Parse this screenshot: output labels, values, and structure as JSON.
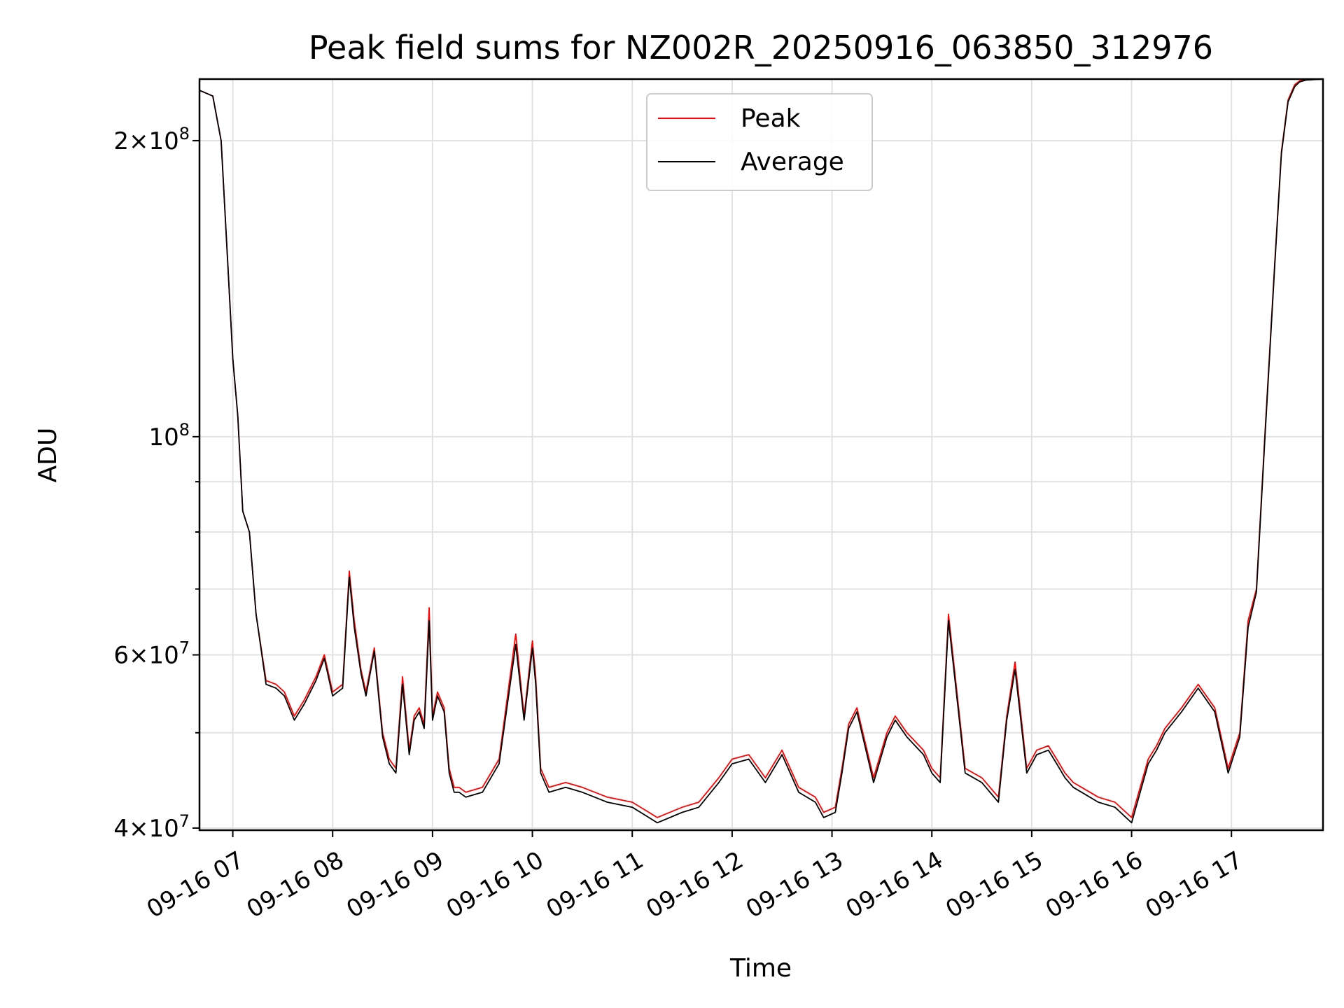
{
  "chart_data": {
    "type": "line",
    "title": "Peak field sums for NZ002R_20250916_063850_312976",
    "xlabel": "Time",
    "ylabel": "ADU",
    "yscale": "log",
    "ylim": [
      39800000,
      231000000
    ],
    "xlim": [
      "2025-09-16 06:40",
      "2025-09-16 17:55"
    ],
    "grid": true,
    "legend_position": "top-center",
    "x_ticks": [
      "09-16 07",
      "09-16 08",
      "09-16 09",
      "09-16 10",
      "09-16 11",
      "09-16 12",
      "09-16 13",
      "09-16 14",
      "09-16 15",
      "09-16 16",
      "09-16 17"
    ],
    "y_ticks": [
      {
        "base": "4",
        "exp": "7",
        "times": true
      },
      {
        "base": "6",
        "exp": "7",
        "times": true
      },
      {
        "base": "10",
        "exp": "8",
        "times": false
      },
      {
        "base": "2",
        "exp": "8",
        "times": true
      }
    ],
    "y_tick_values": [
      40000000,
      60000000,
      100000000,
      200000000
    ],
    "y_minor_values": [
      50000000,
      70000000,
      80000000,
      90000000
    ],
    "series": [
      {
        "name": "Peak",
        "color": "#ff0000"
      },
      {
        "name": "Average",
        "color": "#000000"
      }
    ],
    "x": [
      "06:40",
      "06:48",
      "06:53",
      "06:57",
      "07:00",
      "07:03",
      "07:06",
      "07:10",
      "07:14",
      "07:20",
      "07:26",
      "07:31",
      "07:37",
      "07:43",
      "07:50",
      "07:55",
      "08:00",
      "08:06",
      "08:10",
      "08:13",
      "08:17",
      "08:20",
      "08:25",
      "08:30",
      "08:34",
      "08:38",
      "08:42",
      "08:46",
      "08:49",
      "08:52",
      "08:55",
      "08:58",
      "09:00",
      "09:03",
      "09:07",
      "09:10",
      "09:13",
      "09:16",
      "09:20",
      "09:30",
      "09:40",
      "09:50",
      "09:55",
      "10:00",
      "10:02",
      "10:05",
      "10:10",
      "10:20",
      "10:30",
      "10:45",
      "11:00",
      "11:10",
      "11:15",
      "11:30",
      "11:40",
      "11:52",
      "12:00",
      "12:10",
      "12:20",
      "12:30",
      "12:40",
      "12:50",
      "12:55",
      "13:02",
      "13:06",
      "13:10",
      "13:15",
      "13:25",
      "13:33",
      "13:38",
      "13:45",
      "13:55",
      "14:00",
      "14:05",
      "14:10",
      "14:20",
      "14:30",
      "14:40",
      "14:45",
      "14:50",
      "14:57",
      "15:03",
      "15:10",
      "15:15",
      "15:20",
      "15:25",
      "15:30",
      "15:40",
      "15:50",
      "16:00",
      "16:10",
      "16:15",
      "16:20",
      "16:30",
      "16:40",
      "16:50",
      "16:58",
      "17:05",
      "17:10",
      "17:15",
      "17:20",
      "17:26",
      "17:30",
      "17:34",
      "17:38",
      "17:41",
      "17:45",
      "17:55"
    ],
    "peak": [
      225000000,
      222000000,
      200000000,
      150000000,
      120000000,
      105000000,
      84000000,
      80000000,
      66000000,
      56500000,
      56000000,
      55000000,
      52000000,
      54000000,
      57000000,
      60000000,
      55000000,
      56000000,
      73000000,
      65000000,
      58000000,
      55000000,
      61000000,
      50000000,
      47000000,
      46000000,
      57000000,
      48000000,
      52000000,
      53000000,
      51000000,
      67000000,
      52000000,
      55000000,
      53000000,
      46000000,
      44000000,
      44000000,
      43500000,
      44000000,
      47000000,
      63000000,
      52000000,
      62000000,
      57000000,
      46000000,
      44000000,
      44500000,
      44000000,
      43000000,
      42500000,
      41500000,
      41000000,
      42000000,
      42500000,
      45000000,
      47000000,
      47500000,
      45000000,
      48000000,
      44000000,
      43000000,
      41500000,
      42000000,
      46000000,
      51000000,
      53000000,
      45000000,
      50000000,
      52000000,
      50000000,
      48000000,
      46000000,
      45000000,
      66000000,
      46000000,
      45000000,
      43000000,
      52000000,
      59000000,
      46000000,
      48000000,
      48500000,
      47000000,
      45500000,
      44500000,
      44000000,
      43000000,
      42500000,
      41000000,
      47000000,
      48500000,
      50500000,
      53000000,
      56000000,
      53000000,
      46000000,
      50000000,
      65000000,
      70000000,
      100000000,
      150000000,
      195000000,
      220000000,
      228000000,
      230000000,
      231000000,
      231000000
    ],
    "average": [
      225000000,
      222000000,
      200000000,
      150000000,
      120000000,
      105000000,
      84000000,
      80000000,
      66000000,
      56000000,
      55500000,
      54500000,
      51500000,
      53500000,
      56500000,
      59500000,
      54500000,
      55500000,
      72000000,
      64000000,
      57500000,
      54500000,
      60500000,
      49500000,
      46500000,
      45500000,
      56000000,
      47500000,
      51500000,
      52500000,
      50500000,
      65000000,
      51500000,
      54500000,
      52500000,
      45500000,
      43500000,
      43500000,
      43000000,
      43500000,
      46500000,
      61500000,
      51500000,
      61000000,
      56000000,
      45500000,
      43500000,
      44000000,
      43500000,
      42500000,
      42000000,
      41000000,
      40500000,
      41500000,
      42000000,
      44500000,
      46500000,
      47000000,
      44500000,
      47500000,
      43500000,
      42500000,
      41000000,
      41500000,
      45500000,
      50500000,
      52500000,
      44500000,
      49500000,
      51500000,
      49500000,
      47500000,
      45500000,
      44500000,
      65000000,
      45500000,
      44500000,
      42500000,
      51500000,
      58000000,
      45500000,
      47500000,
      48000000,
      46500000,
      45000000,
      44000000,
      43500000,
      42500000,
      42000000,
      40500000,
      46500000,
      48000000,
      50000000,
      52500000,
      55500000,
      52500000,
      45500000,
      49500000,
      64000000,
      69500000,
      99000000,
      149000000,
      194000000,
      219000000,
      227000000,
      229500000,
      230500000,
      231000000
    ]
  }
}
